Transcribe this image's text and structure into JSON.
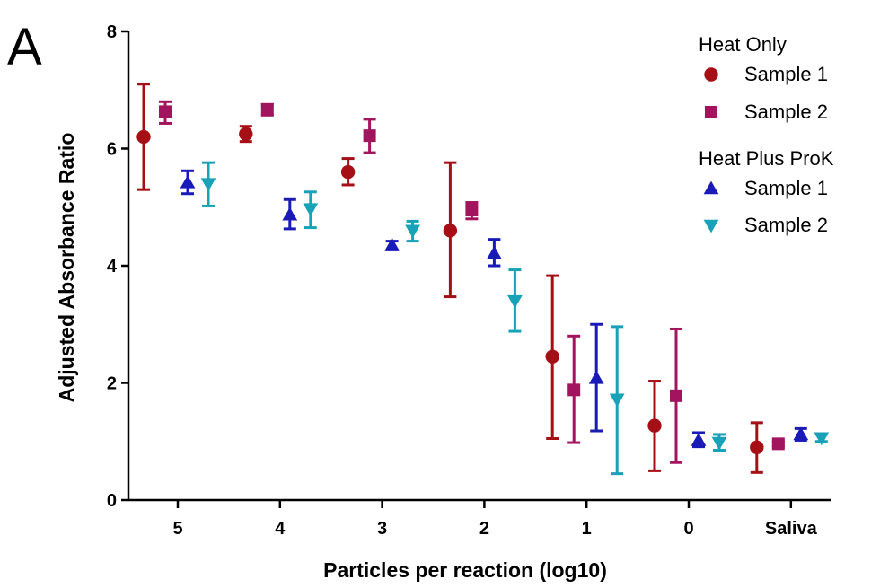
{
  "panel_label": "A",
  "chart_data": {
    "type": "scatter",
    "title": "",
    "xlabel": "Particles per reaction (log10)",
    "ylabel": "Adjusted Absorbance Ratio",
    "ylim": [
      0,
      8
    ],
    "yticks": [
      0,
      2,
      4,
      6,
      8
    ],
    "categories": [
      "5",
      "4",
      "3",
      "2",
      "1",
      "0",
      "Saliva"
    ],
    "grid": false,
    "legend_position": "top-right",
    "legend_groups": [
      {
        "title": "Heat Only",
        "series_indices": [
          0,
          1
        ]
      },
      {
        "title": "Heat Plus ProK",
        "series_indices": [
          2,
          3
        ]
      }
    ],
    "series": [
      {
        "name": "Sample 1",
        "group": "Heat Only",
        "marker": "circle",
        "color": "#a50f15",
        "mean": [
          6.2,
          6.25,
          5.6,
          4.6,
          2.45,
          1.27,
          0.9
        ],
        "lower": [
          5.3,
          6.12,
          5.38,
          3.47,
          1.05,
          0.5,
          0.47
        ],
        "upper": [
          7.1,
          6.38,
          5.83,
          5.76,
          3.83,
          2.03,
          1.32
        ]
      },
      {
        "name": "Sample 2",
        "group": "Heat Only",
        "marker": "square",
        "color": "#a3145e",
        "mean": [
          6.63,
          6.67,
          6.22,
          4.95,
          1.88,
          1.78,
          0.96
        ],
        "lower": [
          6.43,
          6.57,
          5.93,
          4.8,
          0.98,
          0.64,
          0.92
        ],
        "upper": [
          6.8,
          6.75,
          6.5,
          5.08,
          2.8,
          2.92,
          1.0
        ]
      },
      {
        "name": "Sample 1",
        "group": "Heat Plus ProK",
        "marker": "triangle-up",
        "color": "#1a1ab8",
        "mean": [
          5.42,
          4.87,
          4.35,
          4.21,
          2.08,
          1.02,
          1.12
        ],
        "lower": [
          5.23,
          4.63,
          4.27,
          4.0,
          1.18,
          0.91,
          1.02
        ],
        "upper": [
          5.62,
          5.13,
          4.42,
          4.45,
          3.0,
          1.15,
          1.22
        ]
      },
      {
        "name": "Sample 2",
        "group": "Heat Plus ProK",
        "marker": "triangle-down",
        "color": "#17a2b8",
        "mean": [
          5.4,
          4.97,
          4.6,
          3.4,
          1.72,
          0.98,
          1.06
        ],
        "lower": [
          5.02,
          4.65,
          4.42,
          2.88,
          0.45,
          0.85,
          1.0
        ],
        "upper": [
          5.76,
          5.26,
          4.76,
          3.93,
          2.96,
          1.12,
          1.12
        ]
      }
    ]
  }
}
